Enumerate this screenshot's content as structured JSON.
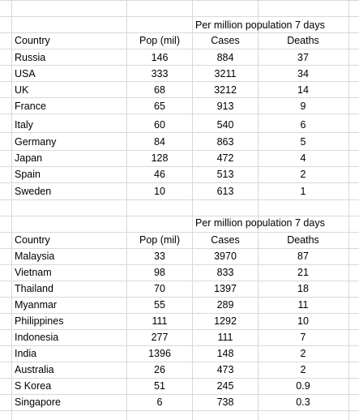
{
  "tables": [
    {
      "group_header": "Per million population 7 days",
      "columns": [
        "Country",
        "Pop (mil)",
        "Cases",
        "Deaths"
      ],
      "rows": [
        [
          "Russia",
          "146",
          "884",
          "37"
        ],
        [
          "USA",
          "333",
          "3211",
          "34"
        ],
        [
          "UK",
          "68",
          "3212",
          "14"
        ],
        [
          "France",
          "65",
          "913",
          "9"
        ],
        [
          "Italy",
          "60",
          "540",
          "6"
        ],
        [
          "Germany",
          "84",
          "863",
          "5"
        ],
        [
          "Japan",
          "128",
          "472",
          "4"
        ],
        [
          "Spain",
          "46",
          "513",
          "2"
        ],
        [
          "Sweden",
          "10",
          "613",
          "1"
        ]
      ]
    },
    {
      "group_header": "Per million population 7 days",
      "columns": [
        "Country",
        "Pop (mil)",
        "Cases",
        "Deaths"
      ],
      "rows": [
        [
          "Malaysia",
          "33",
          "3970",
          "87"
        ],
        [
          "Vietnam",
          "98",
          "833",
          "21"
        ],
        [
          "Thailand",
          "70",
          "1397",
          "18"
        ],
        [
          "Myanmar",
          "55",
          "289",
          "11"
        ],
        [
          "Philippines",
          "111",
          "1292",
          "10"
        ],
        [
          "Indonesia",
          "277",
          "111",
          "7"
        ],
        [
          "India",
          "1396",
          "148",
          "2"
        ],
        [
          "Australia",
          "26",
          "473",
          "2"
        ],
        [
          "S Korea",
          "51",
          "245",
          "0.9"
        ],
        [
          "Singapore",
          "6",
          "738",
          "0.3"
        ]
      ]
    }
  ]
}
